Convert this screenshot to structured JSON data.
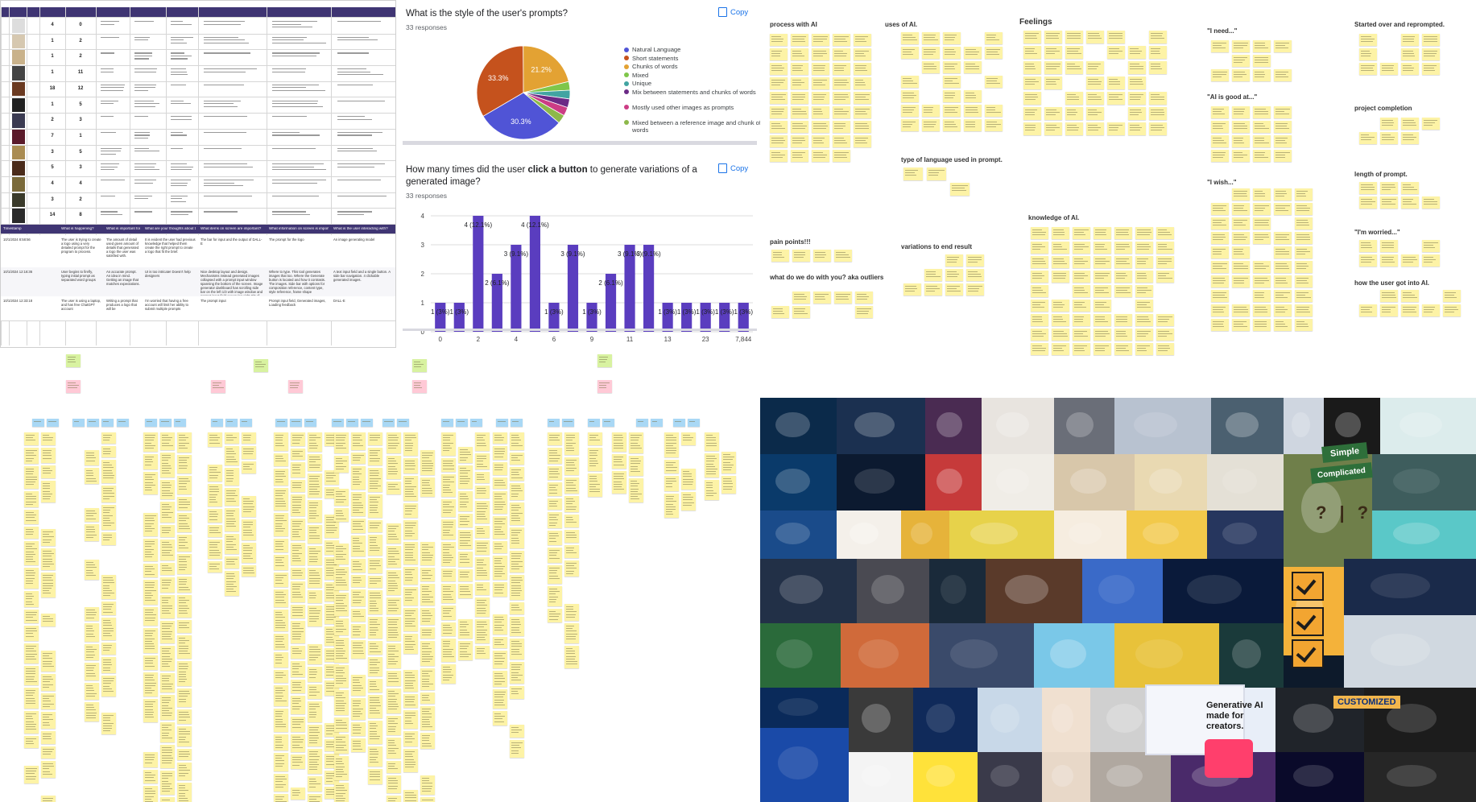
{
  "spreadsheet": {
    "columns": [
      "Timestamp",
      "What is happening?",
      "What is important for the task?",
      "What are your thoughts about this?",
      "What items on screen are important?",
      "What information on screen is important?",
      "What is the user interacting with?"
    ],
    "counts": [
      [
        "4",
        "0"
      ],
      [
        "1",
        "2"
      ],
      [
        "1",
        "2"
      ],
      [
        "1",
        "11"
      ],
      [
        "18",
        "12"
      ],
      [
        "1",
        "5"
      ],
      [
        "2",
        "3"
      ],
      [
        "7",
        "1"
      ],
      [
        "3",
        "5"
      ],
      [
        "5",
        "3"
      ],
      [
        "4",
        "4"
      ],
      [
        "3",
        "2"
      ],
      [
        "14",
        "8"
      ]
    ],
    "rows": [
      {
        "timestamp": "10/1/2024 8:58:56",
        "happening": "The user is trying to create a logo using a very detailed prompt for the program to process.",
        "important": "The amount of detail used given amount of details that generated a logo the user was satisfied with.",
        "thoughts": "It is evident the user had previous knowledge that helped them create the right prompt to create a logo that fit the brief.",
        "items": "The bar for input and the output of DALL-E",
        "information": "The prompt for the logo",
        "interacting": "An image generating model"
      },
      {
        "timestamp": "10/1/2024 12:16:36",
        "happening": "User begins to firefly, typing initial prompt as separated word groups",
        "important": "An accurate prompt. An idea in mind. Getting an image that matches expectations.",
        "thoughts": "UI is too intricate! Doesn't help designers",
        "items": "Nice desktop layout and design. Mechanisms instead generated images collapsed with a prompt input window spanning the bottom of the screen. Image generator dashboard has scrolling side bar on the left 1/3 with image window and prompt input field occupying right 2/3 of screen. 4 images generated at once.",
        "information": "Where to type. This tool generates images that too. Where the Generate button is located and how it contrasts. The images. Side bar with options for composition reference, content type, style reference, frame shape",
        "interacting": "A text input field and a single button. A side bar navigation. 4 clickable generated images."
      },
      {
        "timestamp": "10/1/2024 12:33:18",
        "happening": "The user is using a laptop, and has free ChatGPT account",
        "important": "Writing a prompt that produces a logo that will be",
        "thoughts": "I'm worried that having a free account will limit her ability to submit multiple prompts",
        "items": "The prompt input",
        "information": "Prompt input field, Generated images, Loading feedback",
        "interacting": "DALL-E"
      }
    ]
  },
  "style_question": {
    "title": "What is the style of the user's prompts?",
    "responses": "33 responses",
    "copy_label": "Copy",
    "chart_data": {
      "type": "pie",
      "labels": [
        "Natural Language",
        "Short statements",
        "Chunks of words",
        "Mixed",
        "Unique",
        "Mix between statements and chunks of words",
        "Mostly used other images as prompts",
        "Mixed between a reference image and chunk of words"
      ],
      "values": [
        30.3,
        33.3,
        21.2,
        3.0,
        3.0,
        3.0,
        3.0,
        3.0
      ],
      "data_labels": [
        "30.3%",
        "33.3%",
        "21.2%",
        "",
        "",
        "",
        "",
        ""
      ],
      "colors": [
        "#5054d6",
        "#c5521d",
        "#e3a233",
        "#7fc64a",
        "#42a4a2",
        "#6b2a86",
        "#cc3d85",
        "#8db84a"
      ],
      "legend_position": "right"
    }
  },
  "button_question": {
    "title_before": "How many times did the user ",
    "title_bold": "click a button",
    "title_after": " to generate variations of a generated image?",
    "responses": "33 responses",
    "copy_label": "Copy",
    "chart_data": {
      "type": "bar",
      "x": [
        "0",
        "1",
        "2",
        "3",
        "4",
        "5",
        "6",
        "8",
        "9",
        "10",
        "11",
        "12",
        "13",
        "16",
        "23",
        "24",
        "7,844"
      ],
      "values": [
        1,
        1,
        4,
        2,
        3,
        4,
        1,
        3,
        1,
        2,
        3,
        3,
        1,
        1,
        1,
        1,
        1
      ],
      "data_labels": [
        "1 (3%)",
        "1 (3%)",
        "4 (12.1%)",
        "2 (6.1%)",
        "3 (9.1%)",
        "4 (12.1%)",
        "1 (3%)",
        "3 (9.1%)",
        "1 (3%)",
        "2 (6.1%)",
        "3 (9.1%)",
        "3 (9.1%)",
        "1 (3%)",
        "1 (3%)",
        "1 (3%)",
        "1 (3%)",
        "1 (3%)"
      ],
      "x_tick_labels": [
        "0",
        "2",
        "4",
        "6",
        "9",
        "11",
        "13",
        "23",
        "7,844"
      ],
      "y_ticks": [
        "0",
        "1",
        "2",
        "3",
        "4"
      ],
      "ylim": [
        0,
        4
      ],
      "color": "#5a3dbf",
      "grid": true
    }
  },
  "affinity_board": {
    "clusters": [
      "process with AI",
      "uses of AI.",
      "Feelings",
      "\"I need...\"",
      "Started over and reprompted.",
      "\"AI is good at...\"",
      "project completion",
      "type of language used in prompt.",
      "knowledge of AI.",
      "\"I wish...\"",
      "length of prompt.",
      "pain points!!!",
      "variations to end result",
      "\"I'm worried...\"",
      "what do we do with you? aka outliers",
      "how the user got into AI."
    ]
  },
  "moodboard": {
    "simple_label": "Simple",
    "complicated_label": "Complicated",
    "question_marks": "?|?",
    "customized_label": "CUSTOMIZED",
    "headline": "Generative AI made for creators."
  }
}
